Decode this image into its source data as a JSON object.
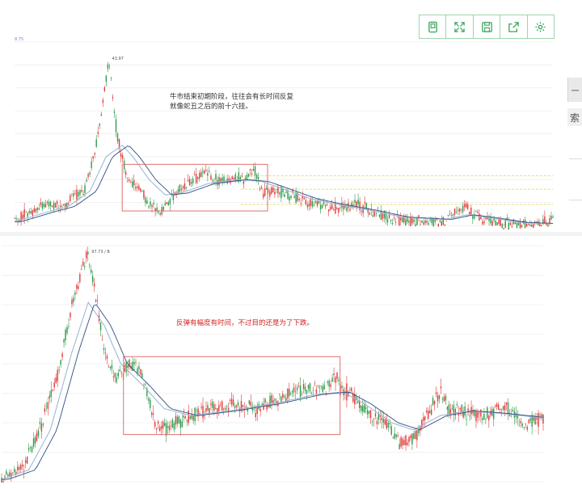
{
  "toolbar": {
    "buttons": [
      {
        "name": "bookmark-button",
        "icon": "bookmark-icon"
      },
      {
        "name": "fullscreen-button",
        "icon": "expand-icon"
      },
      {
        "name": "save-button",
        "icon": "save-icon"
      },
      {
        "name": "share-button",
        "icon": "share-icon"
      },
      {
        "name": "settings-button",
        "icon": "gear-icon"
      }
    ],
    "accent": "#3aa55a"
  },
  "side": {
    "tab_glyph": "一",
    "label": "索"
  },
  "chart_data": [
    {
      "type": "candlestick",
      "ylabel_top": "8.75",
      "peak_label": "43.97",
      "annotation": "牛市结束初期阶段，往往会有长时间反复\n就像蛇丑之后的前十六挂。",
      "colors": {
        "up": "#e03a3a",
        "down": "#2f9a4a",
        "ma1": "#9fb8d8",
        "ma2": "#2f4f7f",
        "box": "#e07070",
        "ref_line": "#e8e06a"
      },
      "y_range": [
        0,
        48
      ],
      "ref_levels": [
        13,
        9.5,
        5.5
      ],
      "box": {
        "x_start": 0.2,
        "x_end": 0.47,
        "y_low": 3.8,
        "y_high": 16
      },
      "path": [
        [
          0,
          1.2
        ],
        [
          0.03,
          3.5
        ],
        [
          0.06,
          6
        ],
        [
          0.09,
          4.5
        ],
        [
          0.11,
          8
        ],
        [
          0.13,
          9
        ],
        [
          0.15,
          20
        ],
        [
          0.165,
          33
        ],
        [
          0.175,
          44
        ],
        [
          0.19,
          24
        ],
        [
          0.21,
          12
        ],
        [
          0.23,
          10.5
        ],
        [
          0.25,
          5.2
        ],
        [
          0.27,
          3.8
        ],
        [
          0.29,
          7
        ],
        [
          0.31,
          10
        ],
        [
          0.33,
          11.5
        ],
        [
          0.35,
          13.5
        ],
        [
          0.38,
          11.5
        ],
        [
          0.41,
          12.5
        ],
        [
          0.43,
          12
        ],
        [
          0.445,
          15.5
        ],
        [
          0.46,
          8.5
        ],
        [
          0.49,
          9
        ],
        [
          0.52,
          7.5
        ],
        [
          0.55,
          6
        ],
        [
          0.58,
          5
        ],
        [
          0.61,
          4.5
        ],
        [
          0.635,
          5.5
        ],
        [
          0.66,
          4
        ],
        [
          0.7,
          1.5
        ],
        [
          0.73,
          1.2
        ],
        [
          0.77,
          0.8
        ],
        [
          0.8,
          1.2
        ],
        [
          0.82,
          4
        ],
        [
          0.84,
          5
        ],
        [
          0.86,
          2
        ],
        [
          0.9,
          0.7
        ],
        [
          0.94,
          0.2
        ],
        [
          0.97,
          0.1
        ],
        [
          1.0,
          1.5
        ]
      ],
      "ma_path": [
        [
          0,
          1
        ],
        [
          0.06,
          3.5
        ],
        [
          0.1,
          5
        ],
        [
          0.14,
          9
        ],
        [
          0.17,
          18
        ],
        [
          0.2,
          21
        ],
        [
          0.22,
          18
        ],
        [
          0.25,
          12
        ],
        [
          0.28,
          8
        ],
        [
          0.31,
          8.5
        ],
        [
          0.36,
          11
        ],
        [
          0.42,
          12
        ],
        [
          0.46,
          11.5
        ],
        [
          0.5,
          9.5
        ],
        [
          0.55,
          7
        ],
        [
          0.6,
          5.5
        ],
        [
          0.66,
          4
        ],
        [
          0.72,
          2.2
        ],
        [
          0.8,
          1.6
        ],
        [
          0.84,
          2.8
        ],
        [
          0.88,
          2.1
        ],
        [
          0.94,
          0.8
        ],
        [
          1.0,
          0.5
        ]
      ]
    },
    {
      "type": "candlestick",
      "peak_label": "97.73 / B",
      "annotation": "反弹有幅度有时间，不过目的还是为了下跌。",
      "colors": {
        "up": "#e03a3a",
        "down": "#2f9a4a",
        "ma1": "#9fb8d8",
        "ma2": "#2f4f7f",
        "box": "#e07070"
      },
      "y_range": [
        0,
        100
      ],
      "box": {
        "x_start": 0.225,
        "x_end": 0.625,
        "y_low": 20,
        "y_high": 53
      },
      "path": [
        [
          0,
          1
        ],
        [
          0.04,
          6
        ],
        [
          0.07,
          22
        ],
        [
          0.1,
          42
        ],
        [
          0.13,
          75
        ],
        [
          0.16,
          98
        ],
        [
          0.19,
          56
        ],
        [
          0.21,
          44
        ],
        [
          0.235,
          50
        ],
        [
          0.255,
          47
        ],
        [
          0.27,
          37
        ],
        [
          0.285,
          23
        ],
        [
          0.3,
          22
        ],
        [
          0.33,
          26
        ],
        [
          0.37,
          30
        ],
        [
          0.42,
          33
        ],
        [
          0.47,
          31
        ],
        [
          0.52,
          36
        ],
        [
          0.57,
          40
        ],
        [
          0.6,
          39
        ],
        [
          0.615,
          46
        ],
        [
          0.625,
          40
        ],
        [
          0.65,
          36
        ],
        [
          0.68,
          28
        ],
        [
          0.71,
          25
        ],
        [
          0.735,
          17
        ],
        [
          0.76,
          18
        ],
        [
          0.79,
          30
        ],
        [
          0.81,
          38
        ],
        [
          0.83,
          30
        ],
        [
          0.86,
          29
        ],
        [
          0.89,
          28
        ],
        [
          0.93,
          32
        ],
        [
          0.96,
          24
        ],
        [
          1.0,
          27
        ]
      ],
      "ma_path": [
        [
          0,
          1
        ],
        [
          0.05,
          5
        ],
        [
          0.09,
          22
        ],
        [
          0.13,
          55
        ],
        [
          0.16,
          76
        ],
        [
          0.19,
          66
        ],
        [
          0.22,
          50
        ],
        [
          0.26,
          41
        ],
        [
          0.3,
          31
        ],
        [
          0.35,
          28
        ],
        [
          0.42,
          30
        ],
        [
          0.5,
          33
        ],
        [
          0.58,
          37
        ],
        [
          0.63,
          38
        ],
        [
          0.67,
          33
        ],
        [
          0.72,
          25
        ],
        [
          0.76,
          22
        ],
        [
          0.81,
          28
        ],
        [
          0.86,
          30
        ],
        [
          0.92,
          29
        ],
        [
          1.0,
          27
        ]
      ]
    }
  ]
}
